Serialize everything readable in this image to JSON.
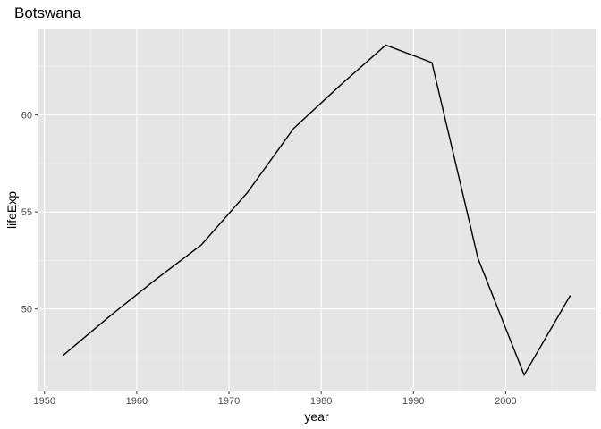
{
  "chart_data": {
    "type": "line",
    "title": "Botswana",
    "xlabel": "year",
    "ylabel": "lifeExp",
    "x": [
      1952,
      1957,
      1962,
      1967,
      1972,
      1977,
      1982,
      1987,
      1992,
      1997,
      2002,
      2007
    ],
    "series": [
      {
        "values": [
          47.6,
          49.6,
          51.5,
          53.3,
          56.0,
          59.3,
          61.5,
          63.6,
          62.7,
          52.6,
          46.6,
          50.7
        ]
      }
    ],
    "xlim": [
      1949.25,
      2009.75
    ],
    "ylim": [
      45.75,
      64.45
    ],
    "x_ticks": [
      1950,
      1960,
      1970,
      1980,
      1990,
      2000
    ],
    "x_tick_labels": [
      "1950",
      "1960",
      "1970",
      "1980",
      "1990",
      "2000"
    ],
    "y_ticks": [
      50,
      55,
      60
    ],
    "y_tick_labels": [
      "50",
      "55",
      "60"
    ],
    "grid": true,
    "colors": {
      "panel_background": "#e5e5e5",
      "grid_major": "#ffffff",
      "line": "#000000",
      "tick_text": "#4d4d4d"
    }
  }
}
